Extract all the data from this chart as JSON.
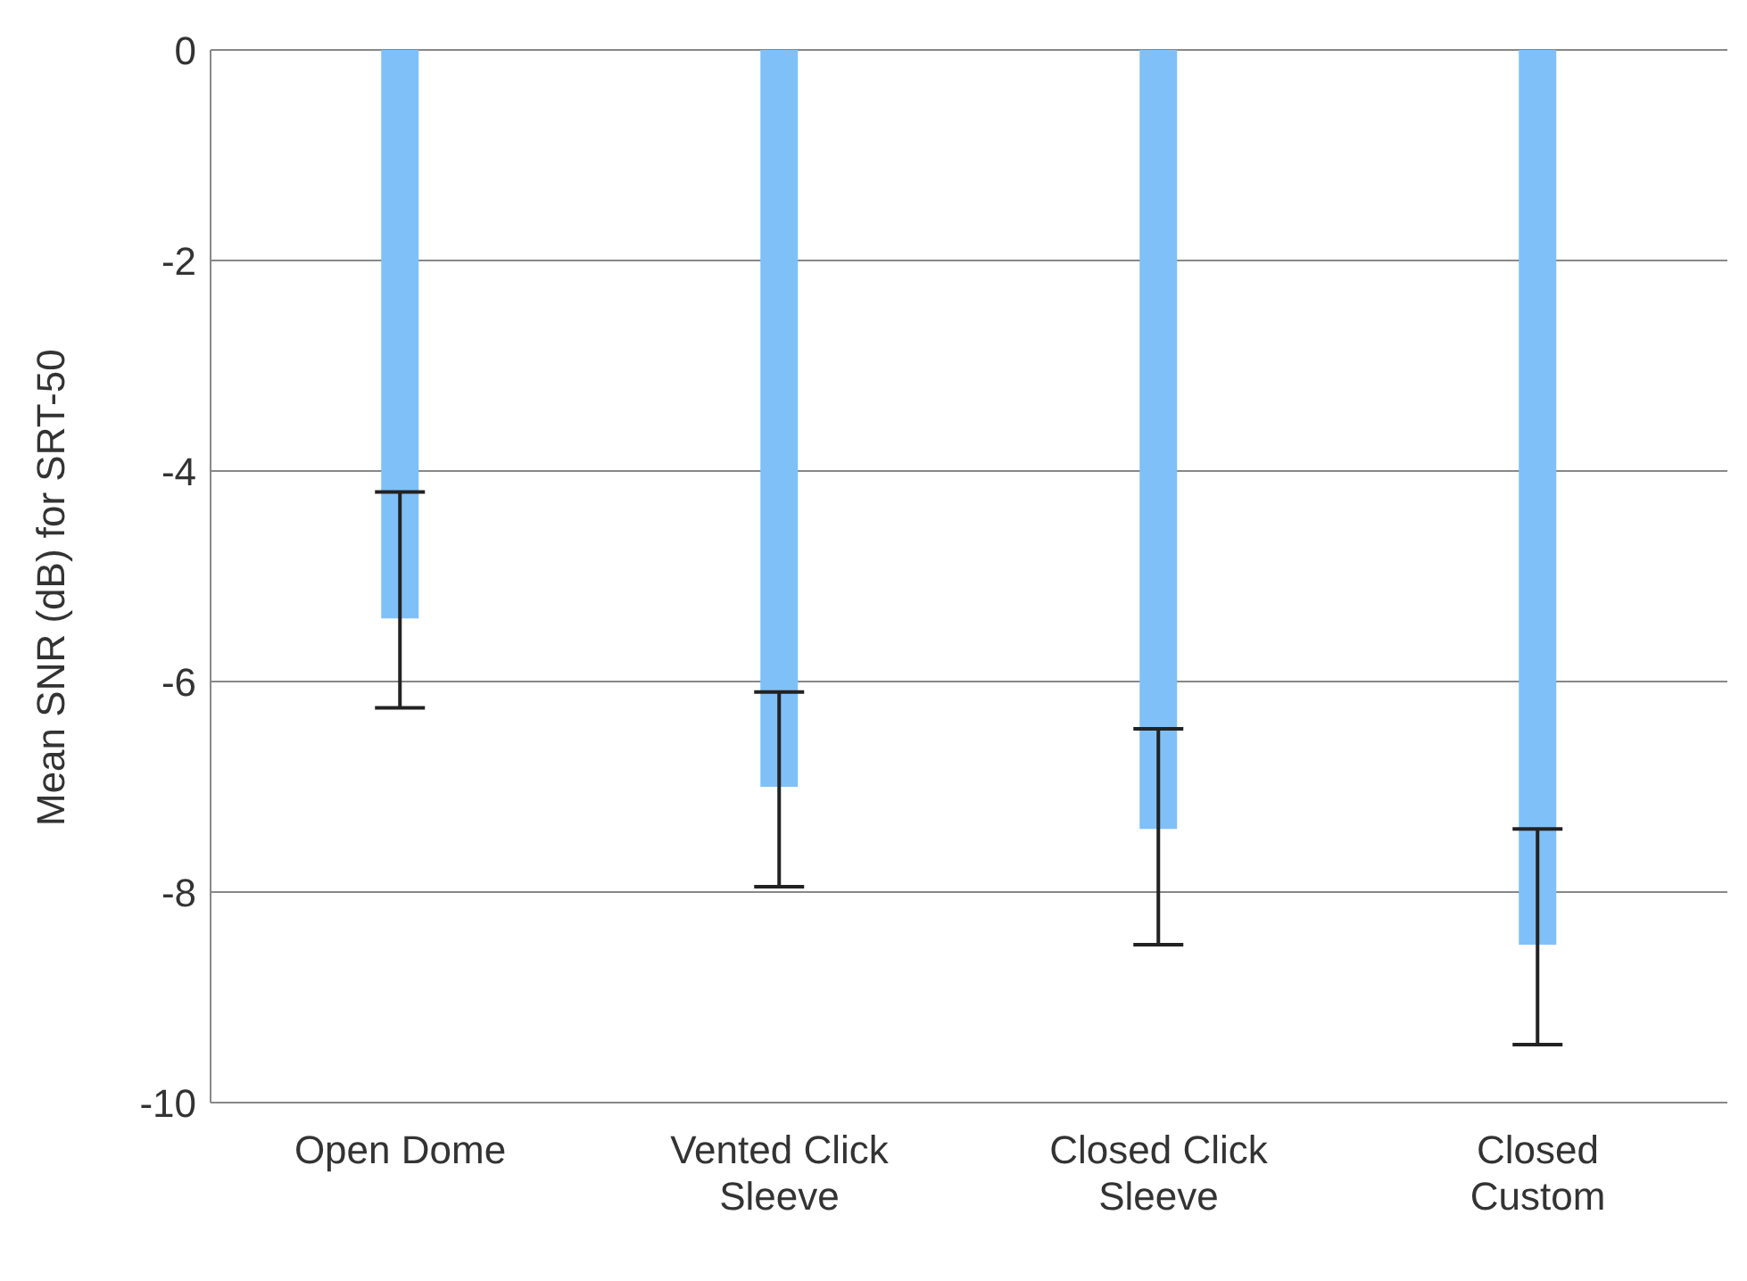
{
  "chart_data": {
    "type": "bar",
    "ylabel": "Mean SNR (dB) for SRT-50",
    "categories": [
      "Open Dome",
      "Vented Click Sleeve",
      "Closed Click Sleeve",
      "Closed Custom"
    ],
    "values": [
      -5.4,
      -7.0,
      -7.4,
      -8.5
    ],
    "errors": [
      [
        -6.25,
        -4.2
      ],
      [
        -7.95,
        -6.1
      ],
      [
        -8.5,
        -6.45
      ],
      [
        -9.45,
        -7.4
      ]
    ],
    "color": "#80c0f8",
    "ylim": [
      -10,
      0
    ],
    "yticks": [
      -10,
      -8,
      -6,
      -4,
      -2,
      0
    ],
    "grid": "y"
  }
}
